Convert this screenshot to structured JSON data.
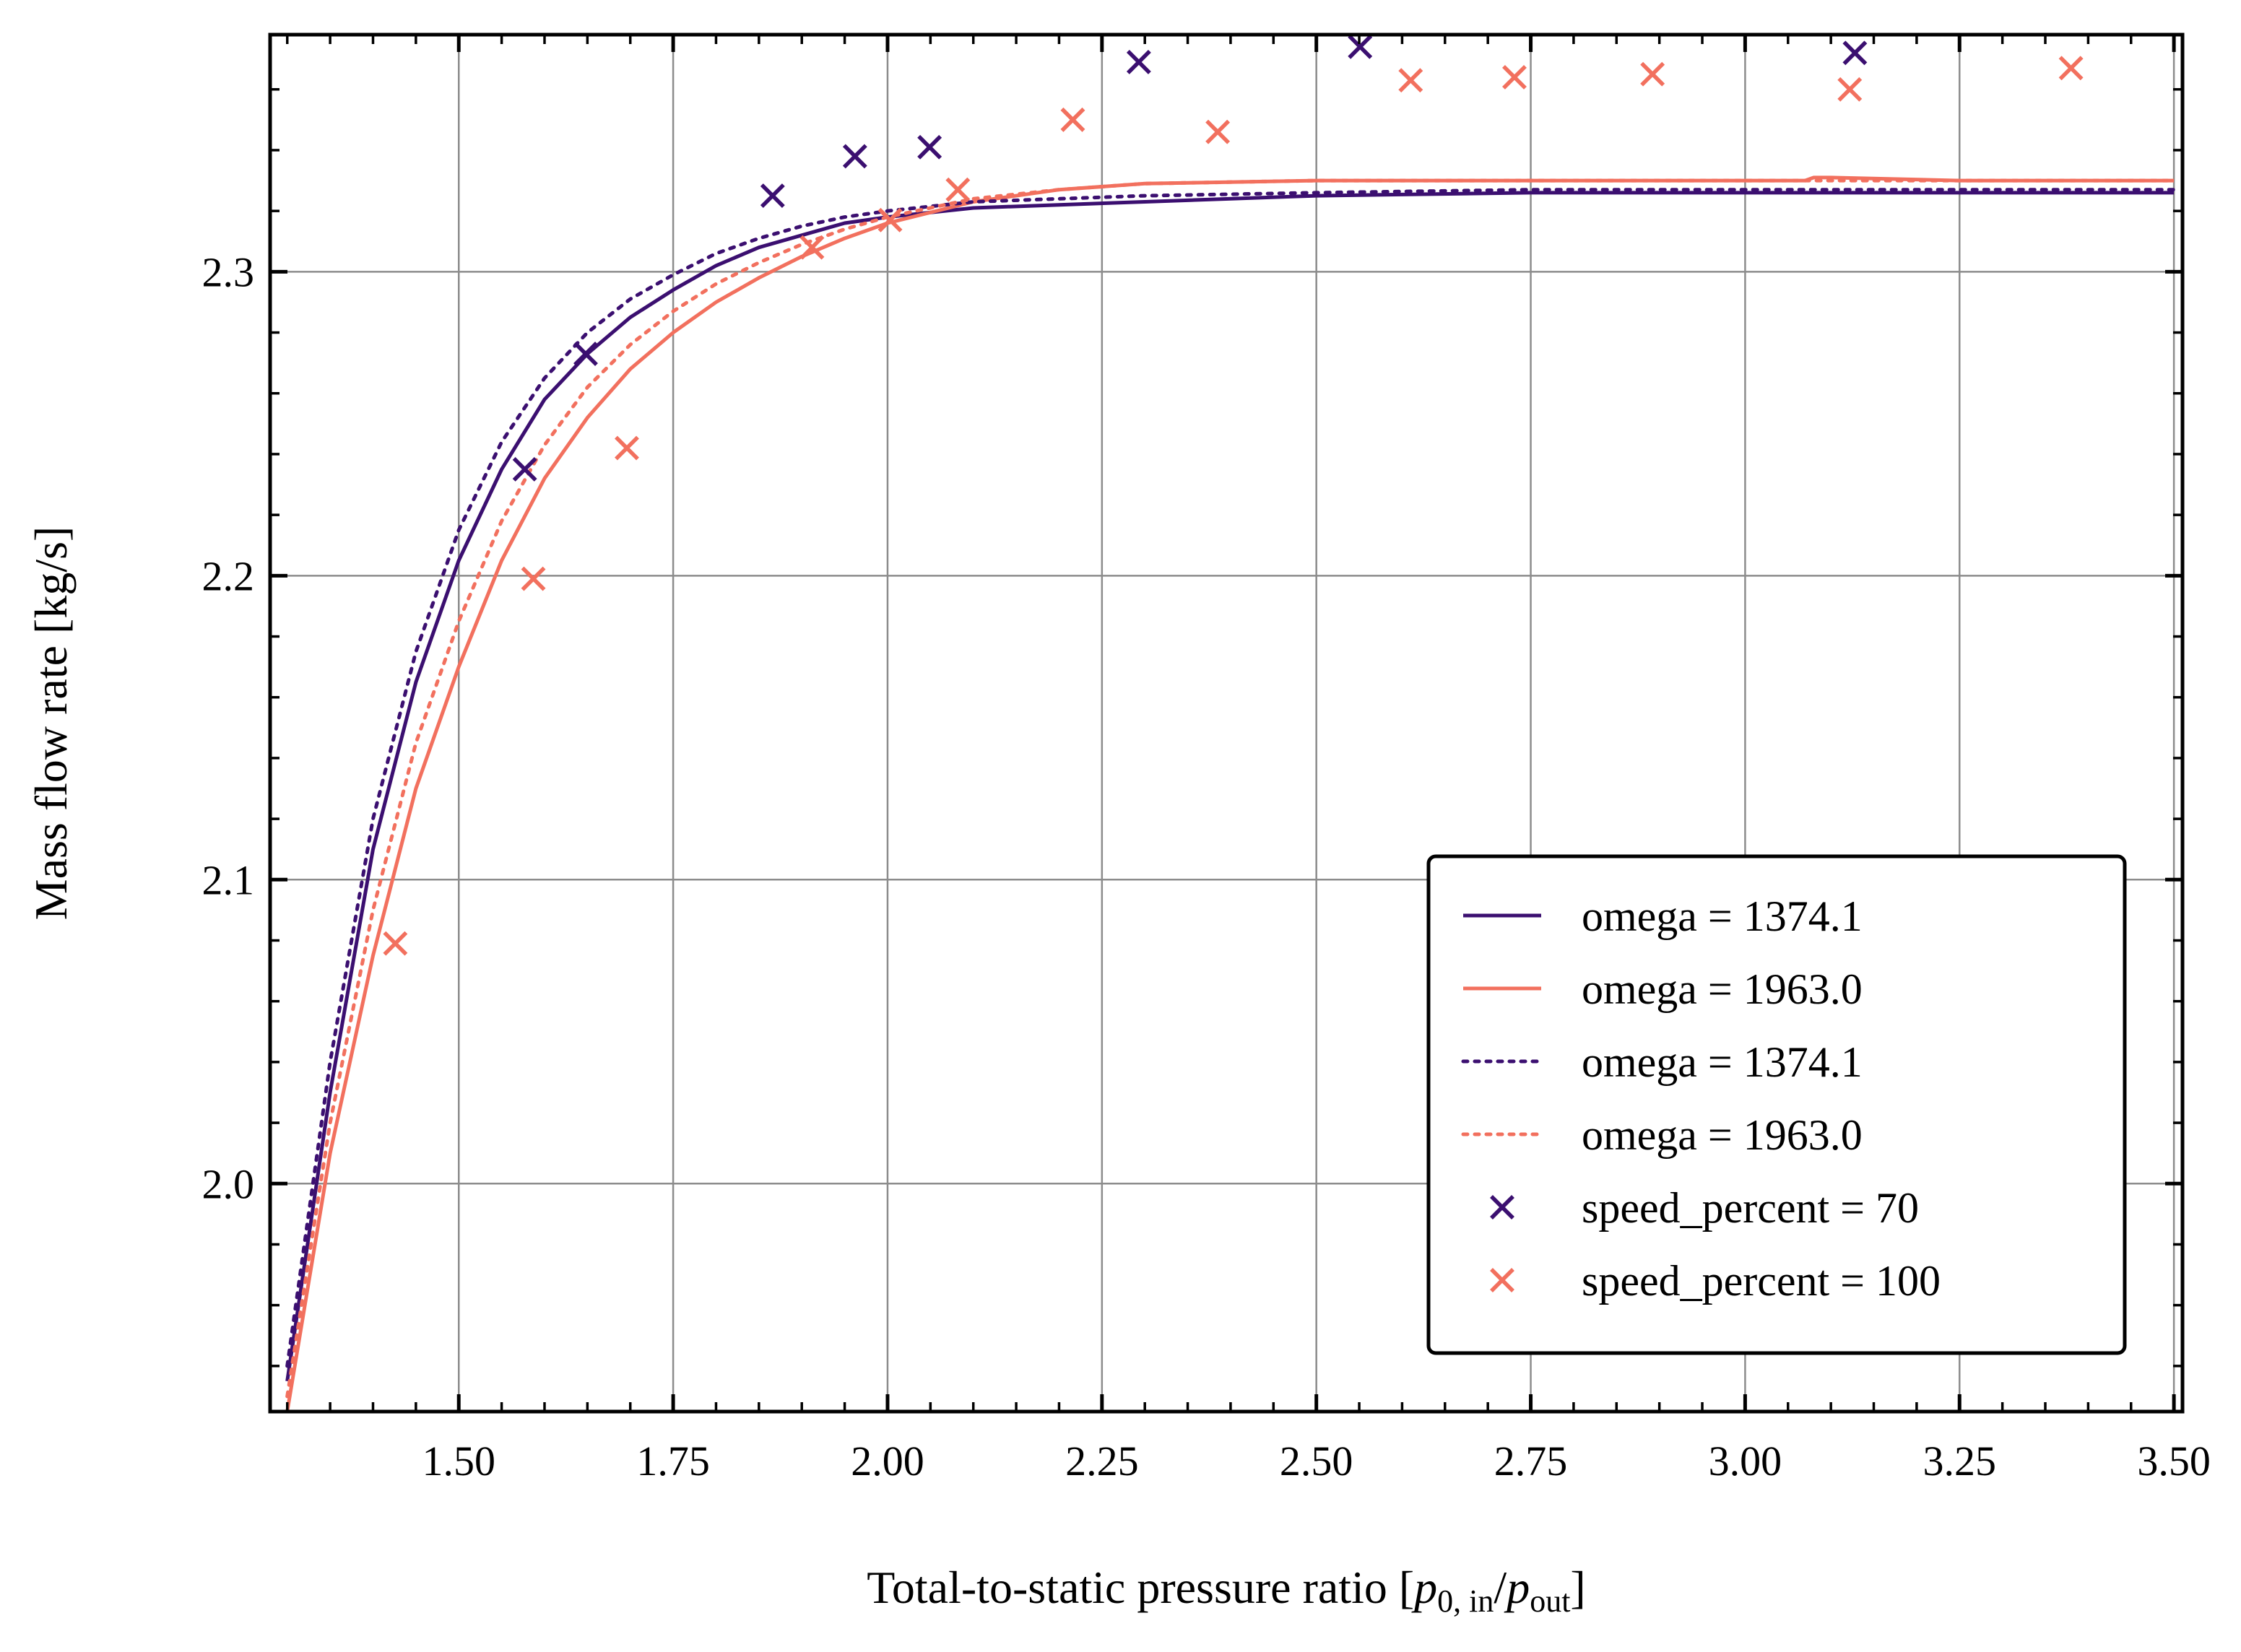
{
  "chart_data": {
    "type": "line",
    "title": "",
    "xlabel_prefix": "Total-to-static pressure ratio [",
    "xlabel_num": "p",
    "xlabel_num_sub": "0, in",
    "xlabel_sep": "/",
    "xlabel_den": "p",
    "xlabel_den_sub": "out",
    "xlabel_suffix": "]",
    "ylabel": "Mass flow rate [kg/s]",
    "xlim": [
      1.28,
      3.51
    ],
    "ylim": [
      1.925,
      2.378
    ],
    "xticks": [
      1.5,
      1.75,
      2.0,
      2.25,
      2.5,
      2.75,
      3.0,
      3.25,
      3.5
    ],
    "xtick_labels": [
      "1.50",
      "1.75",
      "2.00",
      "2.25",
      "2.50",
      "2.75",
      "3.00",
      "3.25",
      "3.50"
    ],
    "yticks": [
      2.0,
      2.1,
      2.2,
      2.3
    ],
    "ytick_labels": [
      "2.0",
      "2.1",
      "2.2",
      "2.3"
    ],
    "grid": true,
    "legend_position": "lower-right",
    "series": [
      {
        "name": "omega = 1374.1",
        "kind": "line",
        "style": "solid",
        "color": "#3b0f70",
        "x": [
          1.3,
          1.35,
          1.4,
          1.45,
          1.5,
          1.55,
          1.6,
          1.65,
          1.7,
          1.75,
          1.8,
          1.85,
          1.9,
          1.95,
          2.0,
          2.1,
          2.2,
          2.3,
          2.5,
          2.75,
          3.0,
          3.25,
          3.5
        ],
        "y": [
          1.935,
          2.03,
          2.11,
          2.165,
          2.205,
          2.235,
          2.258,
          2.273,
          2.285,
          2.294,
          2.302,
          2.308,
          2.312,
          2.316,
          2.318,
          2.321,
          2.322,
          2.323,
          2.325,
          2.326,
          2.326,
          2.326,
          2.326
        ]
      },
      {
        "name": "omega = 1963.0",
        "kind": "line",
        "style": "solid",
        "color": "#f2705e",
        "x": [
          1.3,
          1.35,
          1.4,
          1.45,
          1.5,
          1.55,
          1.6,
          1.65,
          1.7,
          1.75,
          1.8,
          1.85,
          1.9,
          1.95,
          2.0,
          2.1,
          2.2,
          2.3,
          2.5,
          2.75,
          3.0,
          3.07,
          3.08,
          3.1,
          3.25,
          3.5
        ],
        "y": [
          1.925,
          2.01,
          2.075,
          2.13,
          2.17,
          2.205,
          2.232,
          2.252,
          2.268,
          2.28,
          2.29,
          2.298,
          2.305,
          2.311,
          2.316,
          2.323,
          2.327,
          2.329,
          2.33,
          2.33,
          2.33,
          2.33,
          2.331,
          2.331,
          2.33,
          2.33
        ]
      },
      {
        "name": "omega = 1374.1",
        "kind": "line",
        "style": "dotted",
        "color": "#3b0f70",
        "x": [
          1.3,
          1.35,
          1.4,
          1.45,
          1.5,
          1.55,
          1.6,
          1.65,
          1.7,
          1.75,
          1.8,
          1.85,
          1.9,
          1.95,
          2.0,
          2.1,
          2.2,
          2.3,
          2.5,
          2.75,
          3.0,
          3.25,
          3.5
        ],
        "y": [
          1.94,
          2.04,
          2.12,
          2.175,
          2.215,
          2.244,
          2.265,
          2.28,
          2.291,
          2.299,
          2.306,
          2.311,
          2.315,
          2.318,
          2.32,
          2.323,
          2.324,
          2.325,
          2.326,
          2.327,
          2.327,
          2.327,
          2.327
        ]
      },
      {
        "name": "omega = 1963.0",
        "kind": "line",
        "style": "dotted",
        "color": "#f2705e",
        "x": [
          1.3,
          1.35,
          1.4,
          1.45,
          1.5,
          1.55,
          1.6,
          1.65,
          1.7,
          1.75,
          1.8,
          1.85,
          1.9,
          1.95,
          2.0,
          2.1,
          2.2,
          2.3,
          2.5,
          2.75,
          3.0,
          3.25,
          3.5
        ],
        "y": [
          1.93,
          2.02,
          2.09,
          2.145,
          2.185,
          2.218,
          2.243,
          2.262,
          2.276,
          2.287,
          2.296,
          2.303,
          2.309,
          2.314,
          2.318,
          2.324,
          2.327,
          2.329,
          2.33,
          2.33,
          2.33,
          2.33,
          2.33
        ]
      },
      {
        "name": "speed_percent = 70",
        "kind": "scatter",
        "marker": "x",
        "color": "#3b0f70",
        "x": [
          1.577,
          1.648,
          1.866,
          1.962,
          2.049,
          2.293,
          2.551,
          3.128
        ],
        "y": [
          2.235,
          2.273,
          2.325,
          2.338,
          2.341,
          2.369,
          2.374,
          2.372
        ]
      },
      {
        "name": "speed_percent = 100",
        "kind": "scatter",
        "marker": "x",
        "color": "#f2705e",
        "x": [
          1.426,
          1.587,
          1.696,
          1.912,
          2.003,
          2.082,
          2.216,
          2.385,
          2.61,
          2.731,
          2.892,
          3.122,
          3.38
        ],
        "y": [
          2.079,
          2.199,
          2.242,
          2.308,
          2.317,
          2.327,
          2.35,
          2.346,
          2.363,
          2.364,
          2.365,
          2.36,
          2.367
        ]
      }
    ]
  }
}
